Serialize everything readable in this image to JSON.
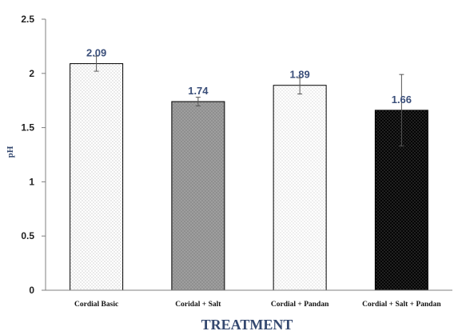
{
  "chart_data": {
    "type": "bar",
    "categories": [
      "Cordial Basic",
      "Coridal + Salt",
      "Cordial  + Pandan",
      "Cordial  + Salt + Pandan"
    ],
    "values": [
      2.09,
      1.74,
      1.89,
      1.66
    ],
    "value_labels": [
      "2.09",
      "1.74",
      "1.89",
      "1.66"
    ],
    "error_bars": [
      {
        "low": 2.02,
        "high": 2.16
      },
      {
        "low": 1.7,
        "high": 1.78
      },
      {
        "low": 1.81,
        "high": 1.96
      },
      {
        "low": 1.33,
        "high": 1.99
      }
    ],
    "bar_styles": [
      {
        "fill": "#ffffff",
        "dot": "#9a9a9a"
      },
      {
        "fill": "#8f8f8f",
        "dot": "#d8d8d8"
      },
      {
        "fill": "#ffffff",
        "dot": "#b0b0b0"
      },
      {
        "fill": "#050505",
        "dot": "#8a8a8a"
      }
    ],
    "xlabel": "TREATMENT",
    "ylabel": "pH",
    "ylim": [
      0,
      2.5
    ],
    "yticks": [
      "0",
      "0.5",
      "1",
      "1.5",
      "2",
      "2.5"
    ],
    "grid": false,
    "legend": "none",
    "colors": {
      "axis": "#7f7f7f",
      "bar_outline": "#000000",
      "label_color": "#3b4f7a",
      "error_bar": "#555555"
    }
  }
}
